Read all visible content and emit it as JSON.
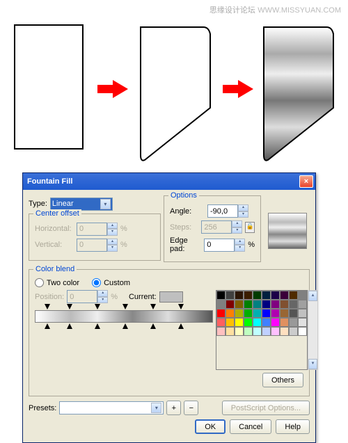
{
  "watermark": {
    "cn": "思缘设计论坛",
    "en": "WWW.MISSYUAN.COM"
  },
  "dialog": {
    "title": "Fountain Fill",
    "type_label": "Type:",
    "type_value": "Linear",
    "options_label": "Options",
    "angle_label": "Angle:",
    "angle_value": "-90,0",
    "steps_label": "Steps:",
    "steps_value": "256",
    "edge_label": "Edge pad:",
    "edge_value": "0",
    "edge_unit": "%",
    "center_label": "Center offset",
    "horiz_label": "Horizontal:",
    "horiz_value": "0",
    "unit": "%",
    "vert_label": "Vertical:",
    "vert_value": "0",
    "blend_label": "Color blend",
    "two_label": "Two color",
    "custom_label": "Custom",
    "position_label": "Position:",
    "position_value": "0",
    "current_label": "Current:",
    "others": "Others",
    "presets_label": "Presets:",
    "postscript": "PostScript Options...",
    "ok": "OK",
    "cancel": "Cancel",
    "help": "Help"
  },
  "palette": [
    "#000000",
    "#404040",
    "#2a1506",
    "#3a1d00",
    "#003b00",
    "#001f3f",
    "#1c0048",
    "#3a003a",
    "#4f2b00",
    "#808080",
    "#808080",
    "#800000",
    "#806000",
    "#008000",
    "#008080",
    "#000080",
    "#800080",
    "#805030",
    "#666666",
    "#a0a0a0",
    "#ff0000",
    "#ff8000",
    "#b0b000",
    "#00b000",
    "#00b0b0",
    "#0000ff",
    "#b000b0",
    "#996633",
    "#555555",
    "#c0c0c0",
    "#ff6060",
    "#ffc000",
    "#ffff00",
    "#00ff00",
    "#00ffff",
    "#4080ff",
    "#ff00ff",
    "#e09060",
    "#999999",
    "#e0e0e0",
    "#ffc0c0",
    "#ffe0a0",
    "#ffffc0",
    "#c0ffc0",
    "#c0ffff",
    "#c0d0ff",
    "#ffc0ff",
    "#ffe0c0",
    "#cccccc",
    "#ffffff"
  ],
  "markers": [
    5,
    18,
    34,
    50,
    66,
    82
  ],
  "arrow_color": "#ff0000"
}
